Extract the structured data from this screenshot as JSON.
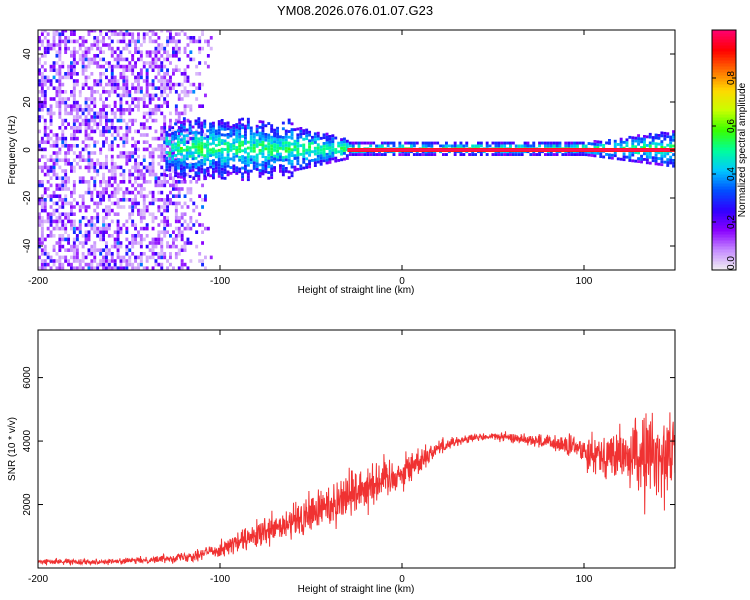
{
  "title": "YM08.2026.076.01.07.G23",
  "chart_data": [
    {
      "type": "heatmap",
      "title": "YM08.2026.076.01.07.G23",
      "xlabel": "Height of straight line (km)",
      "ylabel": "Frequency (Hz)",
      "xlim": [
        -200,
        150
      ],
      "ylim": [
        -50,
        50
      ],
      "xticks": [
        -200,
        -100,
        0,
        100
      ],
      "yticks": [
        -40,
        -20,
        0,
        20,
        40
      ],
      "colorbar": {
        "label": "Normalized spectral amplitude",
        "range": [
          0.0,
          1.0
        ],
        "ticks": [
          0.0,
          0.2,
          0.4,
          0.6,
          0.8
        ],
        "tick_labels": [
          "0.0",
          "0.2",
          "0.4",
          "0.6",
          "0.8"
        ],
        "colormap": [
          "#f2f2f2",
          "#c58cff",
          "#8a00ff",
          "#2f00ff",
          "#0050ff",
          "#00c8ff",
          "#00ff9a",
          "#39ff00",
          "#c8ff00",
          "#ffd800",
          "#ff6e00",
          "#ff0000",
          "#ff0070"
        ]
      },
      "features": {
        "noise_region_x": [
          -200,
          -105
        ],
        "signal_start_x": -130,
        "carrier_frequency": 0,
        "strong_carrier_from_x": -30
      }
    },
    {
      "type": "line",
      "xlabel": "Height of straight line (km)",
      "ylabel": "SNR (10 * v/v)",
      "xlim": [
        -200,
        150
      ],
      "ylim": [
        0,
        7500
      ],
      "xticks": [
        -200,
        -100,
        0,
        100
      ],
      "yticks": [
        2000,
        4000,
        6000
      ],
      "series": [
        {
          "name": "SNR",
          "color": "#f03232",
          "x": [
            -200,
            -180,
            -160,
            -140,
            -130,
            -120,
            -110,
            -100,
            -90,
            -80,
            -70,
            -60,
            -50,
            -40,
            -30,
            -20,
            -10,
            0,
            10,
            20,
            30,
            40,
            50,
            60,
            70,
            80,
            90,
            100,
            110,
            120,
            130,
            140,
            150
          ],
          "values": [
            200,
            200,
            200,
            250,
            300,
            350,
            450,
            600,
            800,
            1000,
            1200,
            1400,
            1700,
            2000,
            2300,
            2600,
            2800,
            3000,
            3400,
            3800,
            4000,
            4100,
            4150,
            4100,
            4050,
            3950,
            3850,
            3700,
            3600,
            3500,
            3500,
            3500,
            3700
          ],
          "spread": [
            100,
            100,
            100,
            120,
            150,
            200,
            250,
            300,
            400,
            500,
            600,
            700,
            800,
            900,
            1000,
            900,
            800,
            700,
            500,
            300,
            200,
            150,
            150,
            180,
            220,
            300,
            400,
            600,
            800,
            1000,
            1500,
            1800,
            1500
          ]
        }
      ]
    }
  ]
}
